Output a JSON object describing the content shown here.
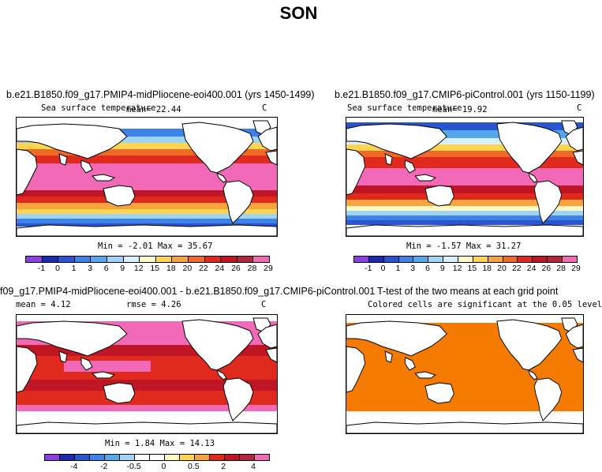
{
  "title": "SON",
  "panels": [
    {
      "title": "b.e21.B1850.f09_g17.PMIP4-midPliocene-eoi400.001 (yrs 1450-1499)",
      "subtitle_left": "Sea surface temperature",
      "subtitle_center": "mean=  22.44",
      "units": "C",
      "minmax": "Min =  -2.01  Max =  35.67",
      "colorbar": {
        "colors": [
          "#8c3ee0",
          "#1a2bb0",
          "#2a55d0",
          "#3c82e8",
          "#56a8ee",
          "#9dd4f7",
          "#d8f0ff",
          "#fff9c4",
          "#ffd54f",
          "#f7a43c",
          "#f06a25",
          "#e02a1e",
          "#c01525",
          "#b52540",
          "#f26ab7"
        ],
        "labels": [
          "-1",
          "0",
          "1",
          "3",
          "6",
          "9",
          "12",
          "15",
          "18",
          "20",
          "22",
          "24",
          "26",
          "28",
          "29"
        ]
      }
    },
    {
      "title": "b.e21.B1850.f09_g17.CMIP6-piControl.001 (yrs 1150-1199)",
      "subtitle_left": "Sea surface temperature",
      "subtitle_center": "mean=  19.92",
      "units": "C",
      "minmax": "Min =  -1.57  Max =  31.27",
      "colorbar": {
        "colors": [
          "#8c3ee0",
          "#1a2bb0",
          "#2a55d0",
          "#3c82e8",
          "#56a8ee",
          "#9dd4f7",
          "#d8f0ff",
          "#fff9c4",
          "#ffd54f",
          "#f7a43c",
          "#f06a25",
          "#e02a1e",
          "#c01525",
          "#b52540",
          "#f26ab7"
        ],
        "labels": [
          "-1",
          "0",
          "1",
          "3",
          "6",
          "9",
          "12",
          "15",
          "18",
          "20",
          "22",
          "24",
          "26",
          "28",
          "29"
        ]
      }
    },
    {
      "title": "f09_g17.PMIP4-midPliocene-eoi400.001 - b.e21.B1850.f09_g17.CMIP6-piControl.001",
      "subtitle_left": "mean =   4.12",
      "subtitle_center": "rmse =   4.26",
      "units": "C",
      "minmax": "Min =   1.84  Max =  14.13",
      "colorbar": {
        "colors": [
          "#8c3ee0",
          "#1a2bb0",
          "#2a55d0",
          "#3c82e8",
          "#56a8ee",
          "#9dd4f7",
          "#ffffff",
          "#ffffff",
          "#fff9c4",
          "#ffd54f",
          "#f7a43c",
          "#e02a1e",
          "#c01525",
          "#b52540",
          "#f26ab7"
        ],
        "labels": [
          "-4",
          "-2",
          "-0.5",
          "0",
          "0.5",
          "2",
          "4"
        ]
      }
    },
    {
      "title": "T-test of the two means at each grid point",
      "subtitle_center": "Colored cells are significant at the 0.05 level",
      "fill_color": "#f57a00"
    }
  ]
}
